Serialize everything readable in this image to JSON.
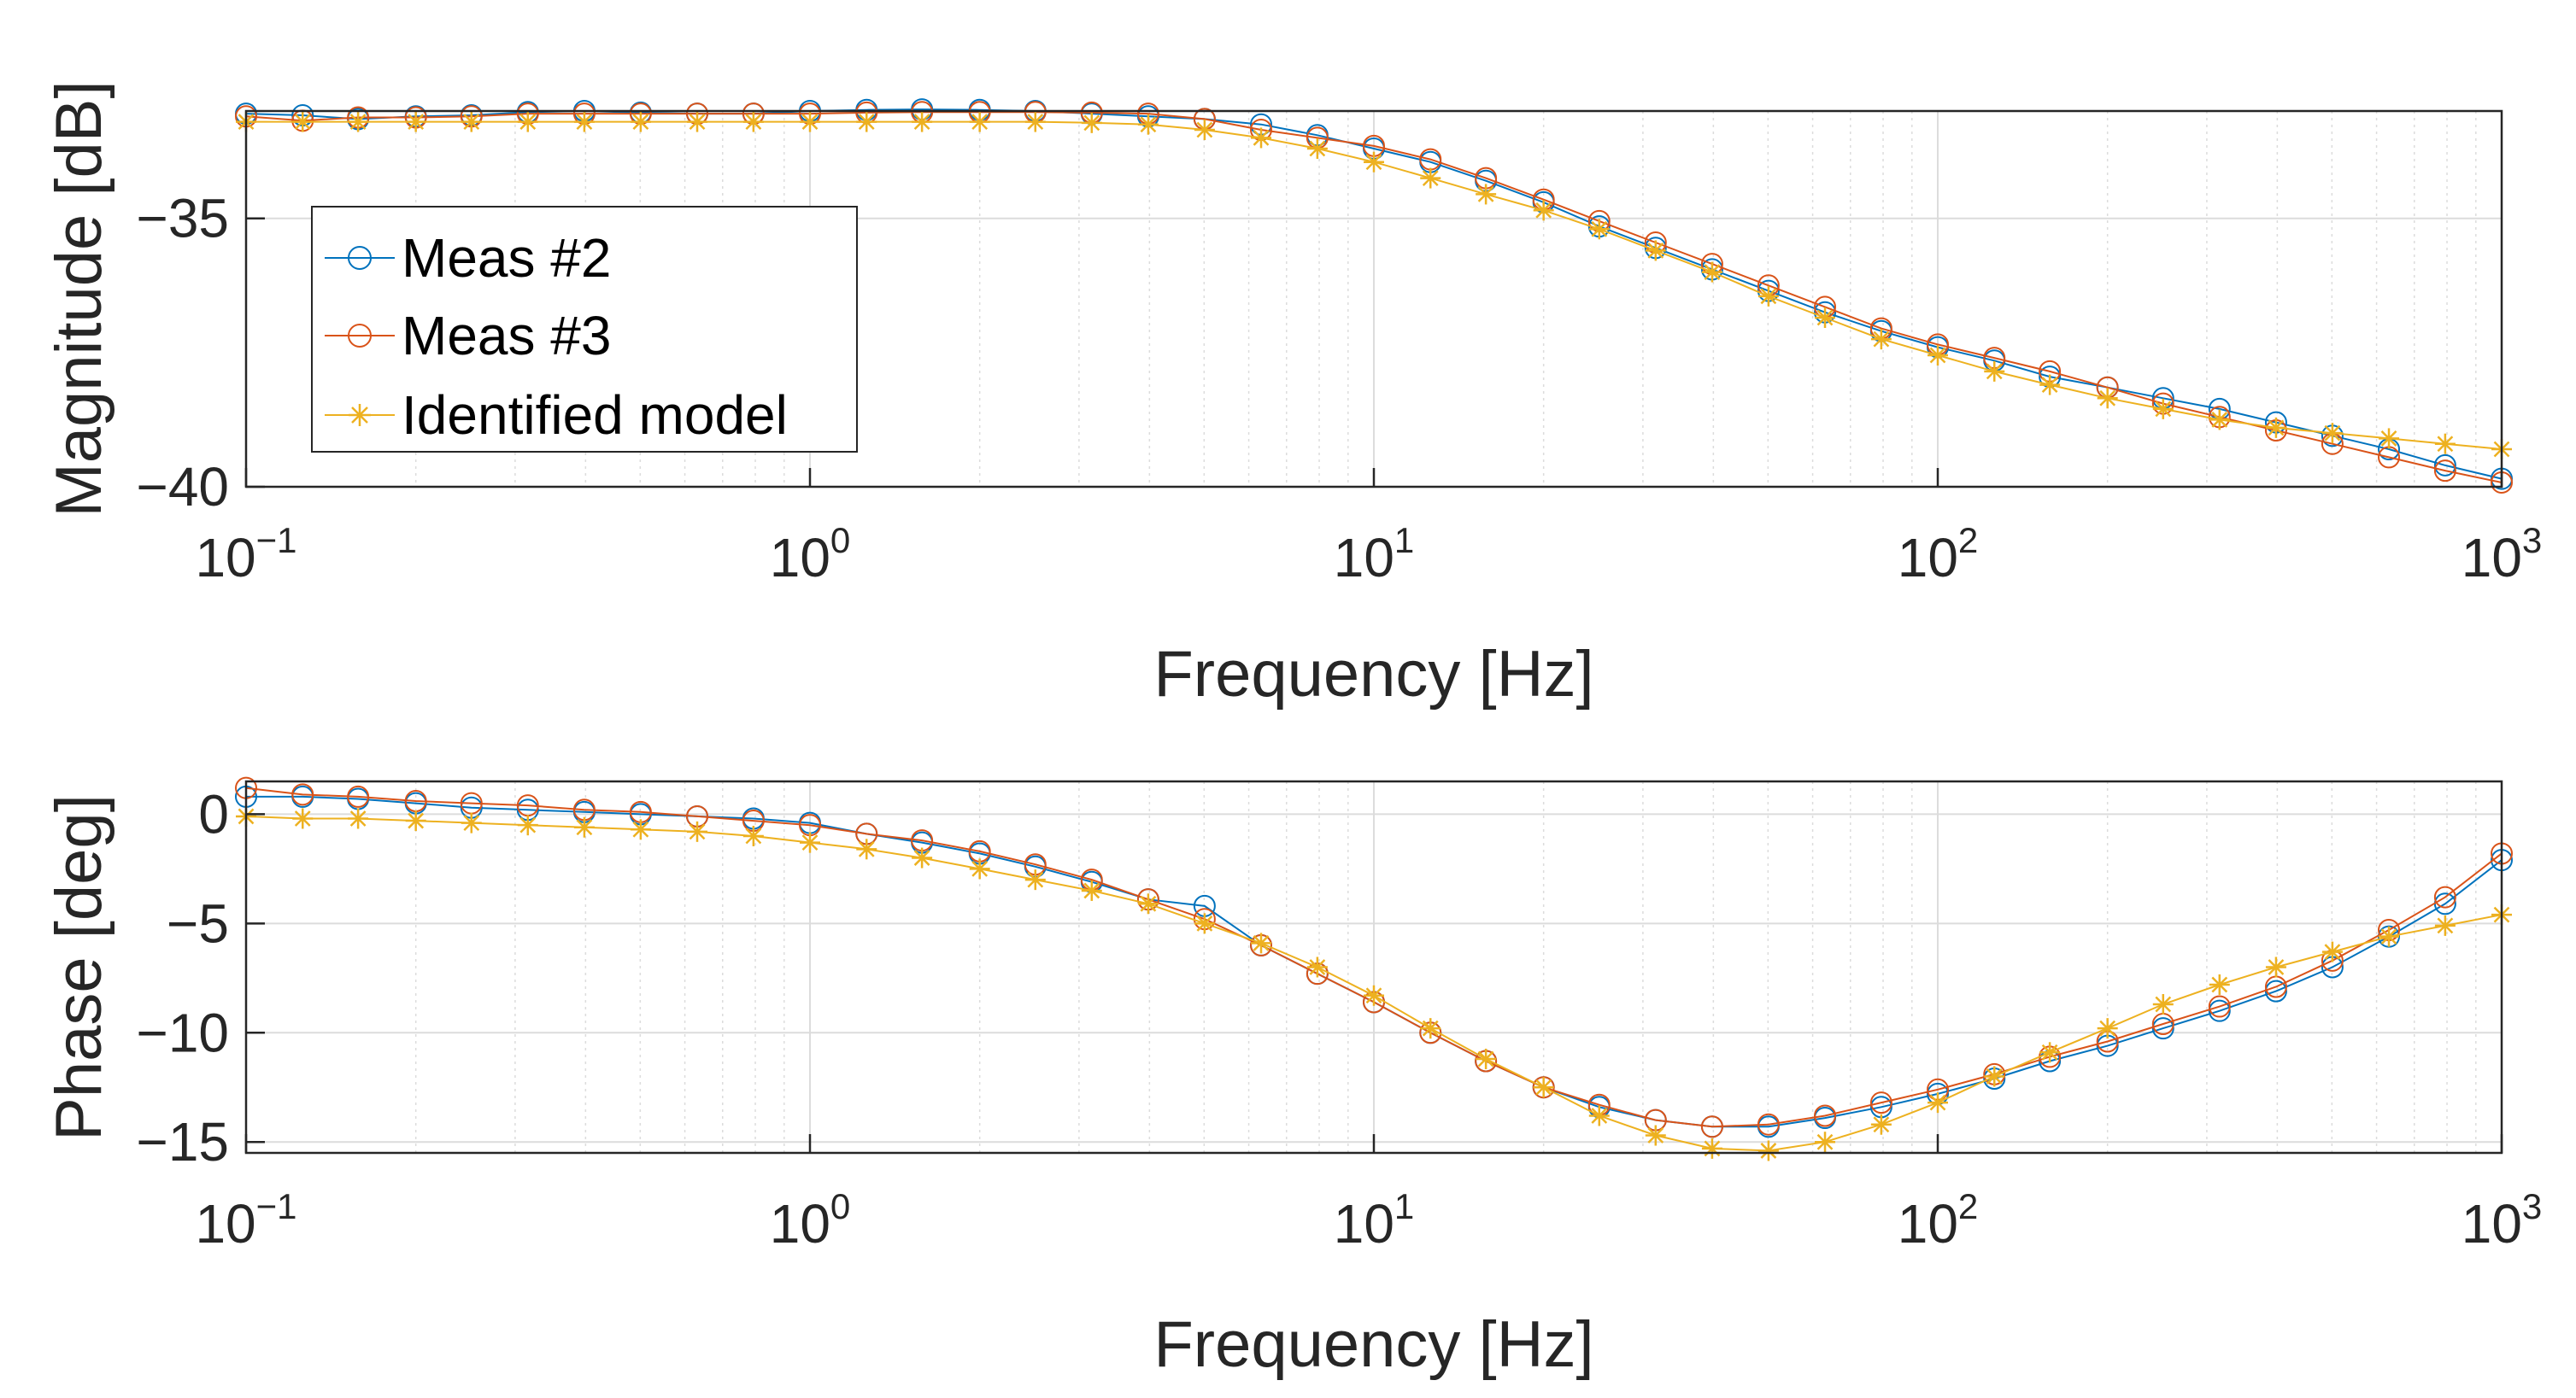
{
  "chart_data": [
    {
      "type": "line",
      "name": "magnitude",
      "xscale": "log",
      "xlim": [
        0.1,
        1000
      ],
      "ylim": [
        -40,
        -33
      ],
      "xlabel": "Frequency [Hz]",
      "ylabel": "Magnitude [dB]",
      "xticks": [
        {
          "base": "10",
          "exp": "−1",
          "value": 0.1
        },
        {
          "base": "10",
          "exp": "0",
          "value": 1
        },
        {
          "base": "10",
          "exp": "1",
          "value": 10
        },
        {
          "base": "10",
          "exp": "2",
          "value": 100
        },
        {
          "base": "10",
          "exp": "3",
          "value": 1000
        }
      ],
      "yticks": [
        {
          "label": "−35",
          "value": -35
        },
        {
          "label": "−40",
          "value": -40
        }
      ],
      "grid": true,
      "legend": {
        "position": "left",
        "entries": [
          "Meas #2",
          "Meas #3",
          "Identified model"
        ]
      },
      "x": [
        0.1,
        0.126,
        0.158,
        0.2,
        0.251,
        0.316,
        0.398,
        0.501,
        0.631,
        0.794,
        1,
        1.26,
        1.58,
        2,
        2.51,
        3.16,
        3.98,
        5.01,
        6.31,
        7.94,
        10,
        12.6,
        15.8,
        20,
        25.1,
        31.6,
        39.8,
        50.1,
        63.1,
        79.4,
        100,
        126,
        158,
        200,
        251,
        316,
        398,
        501,
        631,
        794,
        1000
      ],
      "series": [
        {
          "name": "Meas #2",
          "color": "#0072BD",
          "marker": "circle",
          "values": [
            -33.05,
            -33.08,
            -33.15,
            -33.1,
            -33.08,
            -33.02,
            -33.0,
            -33.03,
            -33.05,
            -33.05,
            -33.0,
            -32.98,
            -32.97,
            -32.98,
            -33.0,
            -33.05,
            -33.1,
            -33.15,
            -33.25,
            -33.45,
            -33.7,
            -33.95,
            -34.3,
            -34.7,
            -35.15,
            -35.55,
            -35.95,
            -36.35,
            -36.75,
            -37.1,
            -37.4,
            -37.65,
            -37.95,
            -38.15,
            -38.35,
            -38.55,
            -38.8,
            -39.05,
            -39.3,
            -39.6,
            -39.85
          ]
        },
        {
          "name": "Meas #3",
          "color": "#D95319",
          "marker": "circle",
          "values": [
            -33.1,
            -33.18,
            -33.12,
            -33.12,
            -33.1,
            -33.05,
            -33.05,
            -33.05,
            -33.05,
            -33.05,
            -33.05,
            -33.03,
            -33.02,
            -33.02,
            -33.02,
            -33.03,
            -33.05,
            -33.15,
            -33.35,
            -33.5,
            -33.65,
            -33.9,
            -34.25,
            -34.65,
            -35.05,
            -35.45,
            -35.85,
            -36.25,
            -36.65,
            -37.05,
            -37.35,
            -37.6,
            -37.85,
            -38.15,
            -38.45,
            -38.7,
            -38.95,
            -39.2,
            -39.45,
            -39.7,
            -39.92
          ]
        },
        {
          "name": "Identified model",
          "color": "#EDB120",
          "marker": "asterisk",
          "values": [
            -33.2,
            -33.2,
            -33.2,
            -33.2,
            -33.2,
            -33.2,
            -33.2,
            -33.2,
            -33.2,
            -33.2,
            -33.2,
            -33.2,
            -33.2,
            -33.2,
            -33.2,
            -33.22,
            -33.25,
            -33.35,
            -33.5,
            -33.7,
            -33.95,
            -34.25,
            -34.55,
            -34.85,
            -35.2,
            -35.6,
            -36.0,
            -36.45,
            -36.85,
            -37.25,
            -37.55,
            -37.85,
            -38.1,
            -38.35,
            -38.55,
            -38.75,
            -38.9,
            -39.0,
            -39.1,
            -39.2,
            -39.3
          ]
        }
      ]
    },
    {
      "type": "line",
      "name": "phase",
      "xscale": "log",
      "xlim": [
        0.1,
        1000
      ],
      "ylim": [
        -15.5,
        1.5
      ],
      "xlabel": "Frequency [Hz]",
      "ylabel": "Phase [deg]",
      "xticks": [
        {
          "base": "10",
          "exp": "−1",
          "value": 0.1
        },
        {
          "base": "10",
          "exp": "0",
          "value": 1
        },
        {
          "base": "10",
          "exp": "1",
          "value": 10
        },
        {
          "base": "10",
          "exp": "2",
          "value": 100
        },
        {
          "base": "10",
          "exp": "3",
          "value": 1000
        }
      ],
      "yticks": [
        {
          "label": "0",
          "value": 0
        },
        {
          "label": "−5",
          "value": -5
        },
        {
          "label": "−10",
          "value": -10
        },
        {
          "label": "−15",
          "value": -15
        }
      ],
      "grid": true,
      "x": [
        0.1,
        0.126,
        0.158,
        0.2,
        0.251,
        0.316,
        0.398,
        0.501,
        0.631,
        0.794,
        1,
        1.26,
        1.58,
        2,
        2.51,
        3.16,
        3.98,
        5.01,
        6.31,
        7.94,
        10,
        12.6,
        15.8,
        20,
        25.1,
        31.6,
        39.8,
        50.1,
        63.1,
        79.4,
        100,
        126,
        158,
        200,
        251,
        316,
        398,
        501,
        631,
        794,
        1000
      ],
      "series": [
        {
          "name": "Meas #2",
          "color": "#0072BD",
          "marker": "circle",
          "values": [
            0.8,
            0.8,
            0.7,
            0.5,
            0.3,
            0.2,
            0.1,
            0.0,
            -0.1,
            -0.2,
            -0.4,
            -0.9,
            -1.3,
            -1.8,
            -2.4,
            -3.1,
            -3.9,
            -4.2,
            -6.0,
            -7.3,
            -8.6,
            -10.0,
            -11.3,
            -12.5,
            -13.4,
            -14.0,
            -14.3,
            -14.3,
            -13.9,
            -13.4,
            -12.8,
            -12.1,
            -11.3,
            -10.6,
            -9.8,
            -9.0,
            -8.1,
            -7.0,
            -5.6,
            -4.1,
            -2.1
          ]
        },
        {
          "name": "Meas #3",
          "color": "#D95319",
          "marker": "circle",
          "values": [
            1.2,
            0.9,
            0.8,
            0.6,
            0.5,
            0.4,
            0.2,
            0.1,
            -0.1,
            -0.3,
            -0.5,
            -0.9,
            -1.2,
            -1.7,
            -2.3,
            -3.0,
            -3.9,
            -4.8,
            -6.0,
            -7.3,
            -8.6,
            -10.0,
            -11.3,
            -12.5,
            -13.3,
            -14.0,
            -14.3,
            -14.2,
            -13.8,
            -13.2,
            -12.6,
            -11.9,
            -11.1,
            -10.4,
            -9.6,
            -8.8,
            -7.9,
            -6.7,
            -5.3,
            -3.8,
            -1.8
          ]
        },
        {
          "name": "Identified model",
          "color": "#EDB120",
          "marker": "asterisk",
          "values": [
            -0.1,
            -0.2,
            -0.2,
            -0.3,
            -0.4,
            -0.5,
            -0.6,
            -0.7,
            -0.8,
            -1.0,
            -1.3,
            -1.6,
            -2.0,
            -2.5,
            -3.0,
            -3.5,
            -4.1,
            -5.0,
            -5.9,
            -7.0,
            -8.3,
            -9.8,
            -11.2,
            -12.5,
            -13.8,
            -14.7,
            -15.3,
            -15.4,
            -15.0,
            -14.2,
            -13.2,
            -12.0,
            -10.9,
            -9.8,
            -8.7,
            -7.8,
            -7.0,
            -6.3,
            -5.6,
            -5.1,
            -4.6
          ]
        }
      ]
    }
  ]
}
